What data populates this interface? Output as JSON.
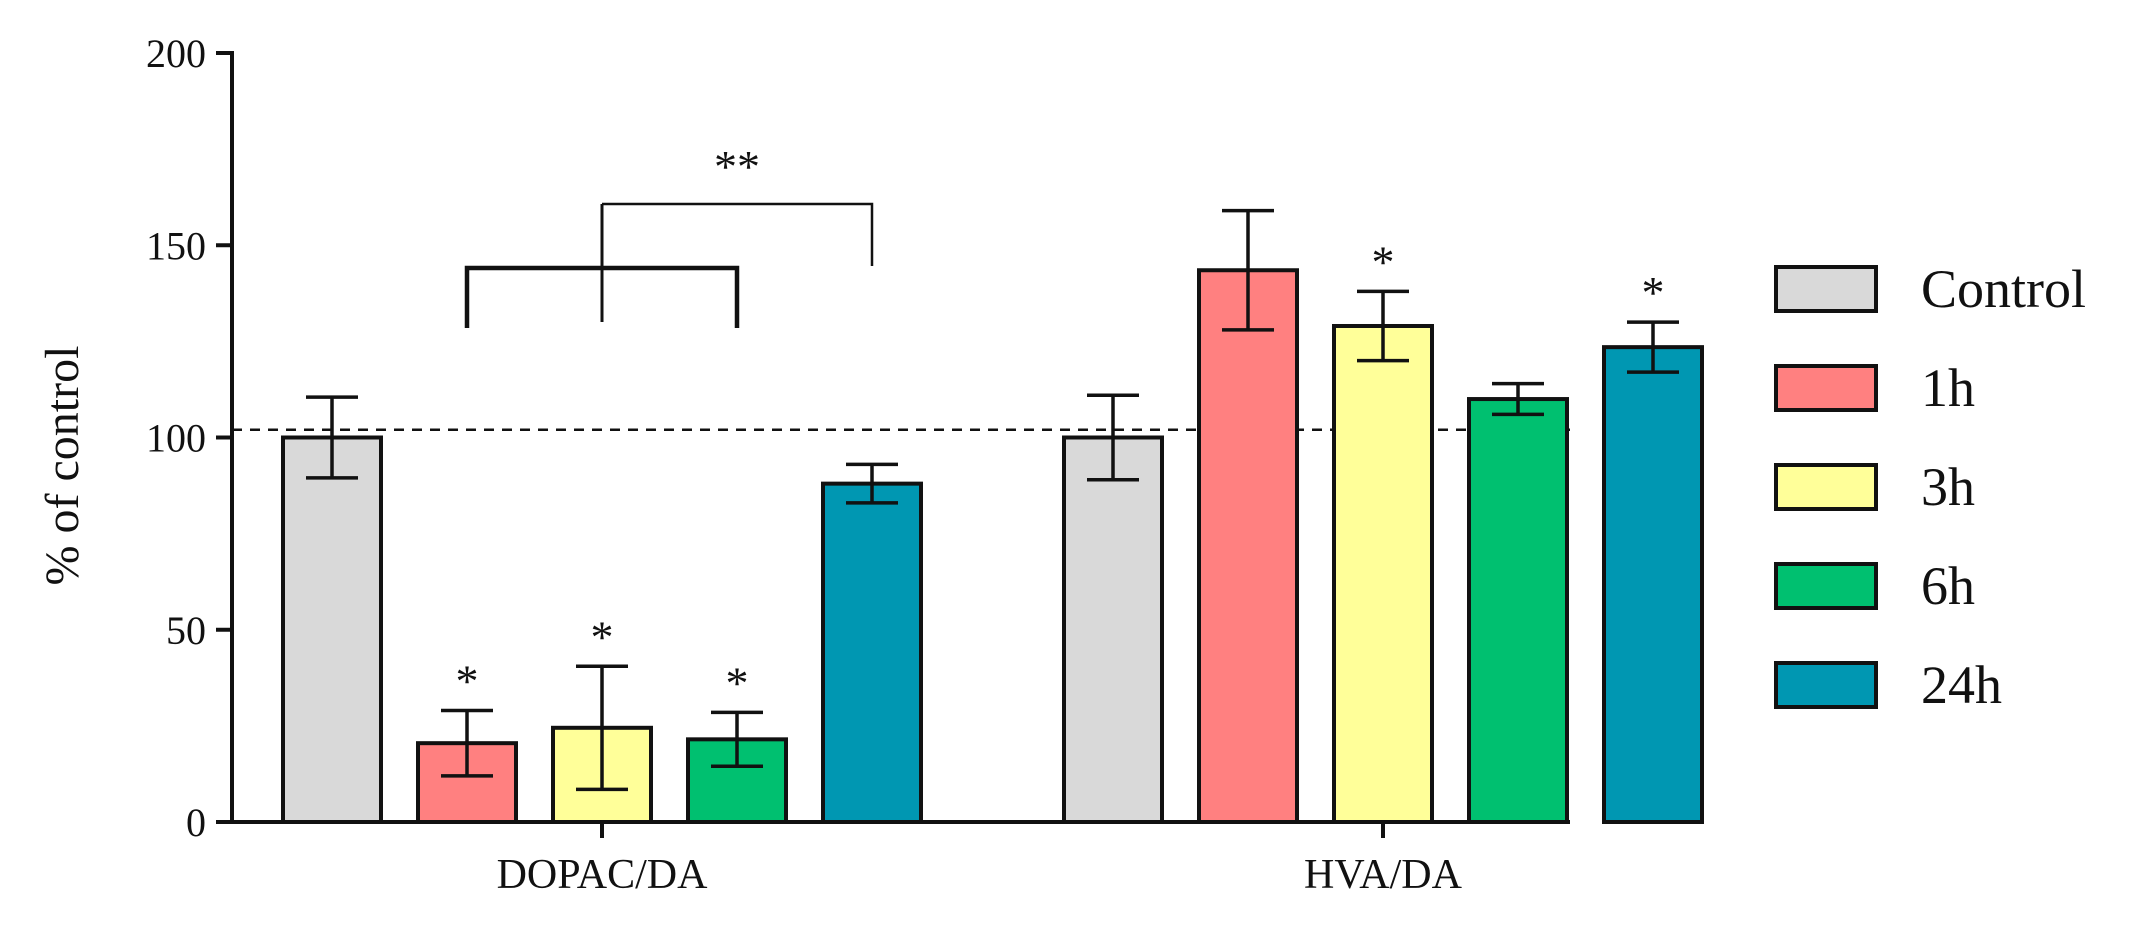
{
  "chart_data": {
    "type": "bar",
    "title": "",
    "ylabel": "% of control",
    "xlabel": "",
    "ylim": [
      0,
      200
    ],
    "yticks": [
      0,
      50,
      100,
      150,
      200
    ],
    "reference_line": 102,
    "categories": [
      "DOPAC/DA",
      "HVA/DA"
    ],
    "series": [
      {
        "name": "Control",
        "color": "#d9d9d9",
        "values": [
          100,
          100
        ],
        "errors": [
          10.5,
          11
        ],
        "significance": [
          "",
          ""
        ]
      },
      {
        "name": "1h",
        "color": "#ff8080",
        "values": [
          20.5,
          143.5
        ],
        "errors": [
          8.5,
          15.5
        ],
        "significance": [
          "*",
          ""
        ]
      },
      {
        "name": "3h",
        "color": "#ffff99",
        "values": [
          24.5,
          129
        ],
        "errors": [
          16,
          9
        ],
        "significance": [
          "*",
          "*"
        ]
      },
      {
        "name": "6h",
        "color": "#00c070",
        "values": [
          21.5,
          110
        ],
        "errors": [
          7,
          4
        ],
        "significance": [
          "*",
          ""
        ]
      },
      {
        "name": "24h",
        "color": "#0097b2",
        "values": [
          88,
          123.5
        ],
        "errors": [
          5,
          6.5
        ],
        "significance": [
          "",
          "*"
        ]
      }
    ],
    "annotations": [
      {
        "text": "**",
        "description": "bracket comparing 1h, 3h and 6h against 24h for DOPAC/DA"
      }
    ],
    "legend_position": "right"
  }
}
